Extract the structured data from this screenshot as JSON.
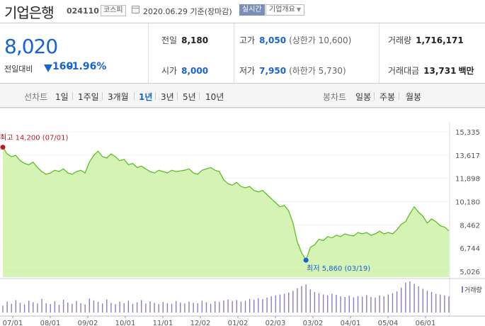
{
  "header": {
    "stock_name": "기업은행",
    "stock_code": "024110",
    "market": "코스피",
    "date_text": "2020.06.29 기준(장마감)",
    "realtime_label": "실시간",
    "info_label": "기업개요"
  },
  "price": {
    "current": "8,020",
    "change_label": "전일대비",
    "change": "160",
    "change_pct": "-1.96%",
    "direction": "down"
  },
  "stats": {
    "prev_close_label": "전일",
    "prev_close": "8,180",
    "high_label": "고가",
    "high": "8,050",
    "upper_limit": "(상한가 10,600)",
    "volume_label": "거래량",
    "volume": "1,716,171",
    "open_label": "시가",
    "open": "8,000",
    "low_label": "저가",
    "low": "7,950",
    "lower_limit": "(하한가 5,730)",
    "amount_label": "거래대금",
    "amount": "13,731",
    "amount_unit": "백만"
  },
  "tabs": {
    "line_chart_label": "선차트",
    "periods": [
      "1일",
      "1주일",
      "3개월",
      "1년",
      "3년",
      "5년",
      "10년"
    ],
    "active_period": "1년",
    "candle_chart_label": "봉차트",
    "candle_periods": [
      "일봉",
      "주봉",
      "월봉"
    ]
  },
  "colors": {
    "accent_blue": "#1762d4",
    "high_red": "#c0181d",
    "line_green": "#5bc024",
    "area_green": "#c8ef9e",
    "volume_purple": "#8e7cc3"
  },
  "chart_data": {
    "type": "area",
    "period": "1년",
    "y_ticks": [
      "15,335",
      "13,617",
      "11,898",
      "10,180",
      "8,462",
      "6,744",
      "5,026"
    ],
    "ylim": [
      5026,
      15335
    ],
    "x_ticks": [
      "07/01",
      "08/01",
      "09/02",
      "10/01",
      "11/01",
      "12/02",
      "01/02",
      "02/03",
      "03/02",
      "04/01",
      "05/04",
      "06/01"
    ],
    "series": [
      {
        "values": [
          14200,
          13700,
          13500,
          13600,
          13200,
          13000,
          12900,
          13100,
          12700,
          12400,
          12200,
          12300,
          12500,
          12400,
          12600,
          12300,
          12200,
          12400,
          12500,
          12300,
          13100,
          13600,
          13900,
          13500,
          13400,
          13700,
          13500,
          13200,
          13300,
          12900,
          13000,
          12700,
          12800,
          12600,
          12400,
          12300,
          12500,
          12400,
          12300,
          12500,
          12400,
          12450,
          12500,
          12600,
          12300,
          12200,
          12500,
          12600,
          12700,
          12500,
          12400,
          11800,
          11500,
          11400,
          11600,
          11300,
          11200,
          11300,
          11000,
          10900,
          11000,
          10700,
          10400,
          10100,
          9800,
          9900,
          9500,
          8600,
          7200,
          6400,
          5860,
          6800,
          7000,
          7400,
          7300,
          7600,
          7500,
          7700,
          7600,
          7800,
          7700,
          7650,
          7900,
          7800,
          7900,
          7700,
          7800,
          8000,
          7800,
          7900,
          7800,
          8100,
          8500,
          8700,
          9300,
          9800,
          9400,
          9100,
          8600,
          8900,
          8700,
          8400,
          8300,
          8020
        ]
      }
    ],
    "annotations": {
      "high": {
        "label": "최고 14,200 (07/01)",
        "value": 14200,
        "x": "07/01"
      },
      "low": {
        "label": "최저 5,860 (03/19)",
        "value": 5860,
        "x": "03/19"
      }
    },
    "volume_label": "거래량",
    "volume": [
      22,
      35,
      28,
      40,
      31,
      26,
      38,
      33,
      29,
      44,
      30,
      27,
      36,
      25,
      41,
      32,
      28,
      37,
      30,
      26,
      45,
      39,
      34,
      29,
      42,
      31,
      27,
      35,
      30,
      38,
      28,
      33,
      40,
      29,
      36,
      31,
      27,
      34,
      30,
      28,
      37,
      32,
      29,
      35,
      31,
      30,
      38,
      33,
      28,
      36,
      34,
      39,
      42,
      37,
      40,
      35,
      38,
      44,
      41,
      46,
      43,
      48,
      52,
      55,
      58,
      60,
      64,
      70,
      78,
      85,
      90,
      74,
      66,
      62,
      58,
      55,
      60,
      57,
      52,
      50,
      54,
      49,
      53,
      51,
      56,
      50,
      48,
      55,
      52,
      58,
      62,
      68,
      80,
      96,
      100,
      92,
      84,
      76,
      70,
      66,
      60,
      58,
      55,
      52
    ]
  }
}
